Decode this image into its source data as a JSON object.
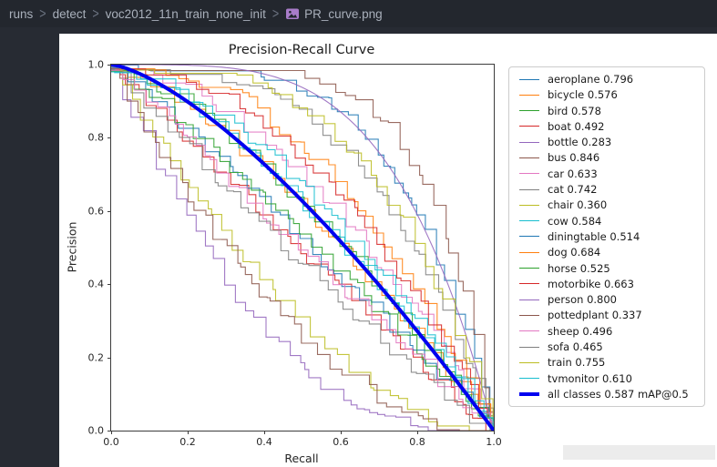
{
  "breadcrumb": {
    "separator": ">",
    "items": [
      "runs",
      "detect",
      "voc2012_11n_train_none_init",
      "PR_curve.png"
    ],
    "file_icon": "image-file"
  },
  "chart_data": {
    "type": "line",
    "title": "Precision-Recall Curve",
    "xlabel": "Recall",
    "ylabel": "Precision",
    "xlim": [
      0.0,
      1.0
    ],
    "ylim": [
      0.0,
      1.0
    ],
    "x_ticks": [
      "0.0",
      "0.2",
      "0.4",
      "0.6",
      "0.8",
      "1.0"
    ],
    "y_ticks": [
      "0.0",
      "0.2",
      "0.4",
      "0.6",
      "0.8",
      "1.0"
    ],
    "grid": false,
    "legend_position": "right",
    "curve_style": "precision-recall step curves, one per class; precision starts at 1.0 at recall 0 and falls to 0.0 at recall 1.0",
    "series": [
      {
        "name": "aeroplane",
        "ap": 0.796,
        "legend_label": "aeroplane 0.796",
        "color": "#1f77b4",
        "smooth": false
      },
      {
        "name": "bicycle",
        "ap": 0.576,
        "legend_label": "bicycle 0.576",
        "color": "#ff7f0e",
        "smooth": false
      },
      {
        "name": "bird",
        "ap": 0.578,
        "legend_label": "bird 0.578",
        "color": "#2ca02c",
        "smooth": false
      },
      {
        "name": "boat",
        "ap": 0.492,
        "legend_label": "boat 0.492",
        "color": "#d62728",
        "smooth": false
      },
      {
        "name": "bottle",
        "ap": 0.283,
        "legend_label": "bottle 0.283",
        "color": "#9467bd",
        "smooth": false
      },
      {
        "name": "bus",
        "ap": 0.846,
        "legend_label": "bus 0.846",
        "color": "#8c564b",
        "smooth": false
      },
      {
        "name": "car",
        "ap": 0.633,
        "legend_label": "car 0.633",
        "color": "#e377c2",
        "smooth": false
      },
      {
        "name": "cat",
        "ap": 0.742,
        "legend_label": "cat 0.742",
        "color": "#7f7f7f",
        "smooth": false
      },
      {
        "name": "chair",
        "ap": 0.36,
        "legend_label": "chair 0.360",
        "color": "#bcbd22",
        "smooth": false
      },
      {
        "name": "cow",
        "ap": 0.584,
        "legend_label": "cow 0.584",
        "color": "#17becf",
        "smooth": false
      },
      {
        "name": "diningtable",
        "ap": 0.514,
        "legend_label": "diningtable 0.514",
        "color": "#1f77b4",
        "smooth": false
      },
      {
        "name": "dog",
        "ap": 0.684,
        "legend_label": "dog 0.684",
        "color": "#ff7f0e",
        "smooth": false
      },
      {
        "name": "horse",
        "ap": 0.525,
        "legend_label": "horse 0.525",
        "color": "#2ca02c",
        "smooth": false
      },
      {
        "name": "motorbike",
        "ap": 0.663,
        "legend_label": "motorbike 0.663",
        "color": "#d62728",
        "smooth": false
      },
      {
        "name": "person",
        "ap": 0.8,
        "legend_label": "person 0.800",
        "color": "#9467bd",
        "smooth": true
      },
      {
        "name": "pottedplant",
        "ap": 0.337,
        "legend_label": "pottedplant 0.337",
        "color": "#8c564b",
        "smooth": false
      },
      {
        "name": "sheep",
        "ap": 0.496,
        "legend_label": "sheep 0.496",
        "color": "#e377c2",
        "smooth": false
      },
      {
        "name": "sofa",
        "ap": 0.465,
        "legend_label": "sofa 0.465",
        "color": "#7f7f7f",
        "smooth": false
      },
      {
        "name": "train",
        "ap": 0.755,
        "legend_label": "train 0.755",
        "color": "#bcbd22",
        "smooth": false
      },
      {
        "name": "tvmonitor",
        "ap": 0.61,
        "legend_label": "tvmonitor 0.610",
        "color": "#17becf",
        "smooth": false
      }
    ],
    "overall": {
      "name": "all classes",
      "map": 0.587,
      "legend_label": "all classes 0.587 mAP@0.5",
      "color": "#0000f0",
      "linewidth": 4
    }
  },
  "colors": {
    "editor_background": "#272b33",
    "breadcrumb_text": "#a9b0bb",
    "file_icon_purple": "#a87cc9",
    "figure_background": "#ffffff",
    "spine": "#3c3c3c"
  }
}
